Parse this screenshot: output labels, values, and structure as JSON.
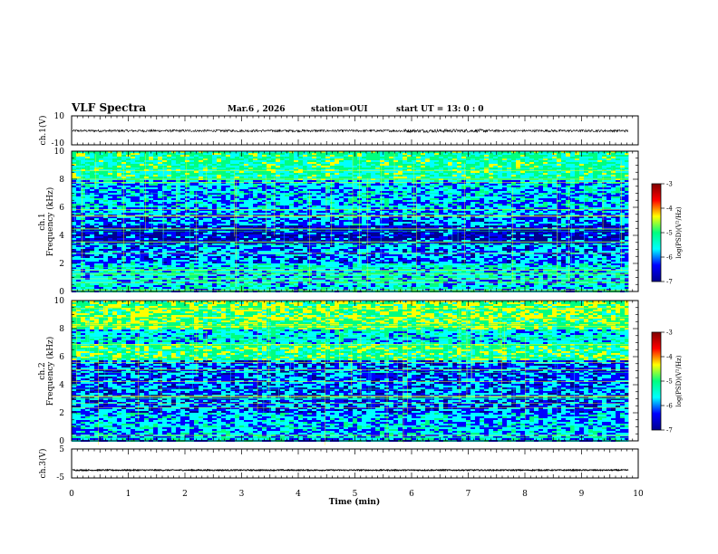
{
  "header": {
    "title": "VLF Spectra",
    "date": "Mar.6  , 2026",
    "station": "station=OUI",
    "start_ut": "start  UT  =   13: 0  : 0"
  },
  "colors": {
    "colormap": [
      "#00008f",
      "#0000ff",
      "#00ffff",
      "#00ff7f",
      "#ffff00",
      "#ff0000",
      "#7f0000"
    ]
  },
  "chart_data": [
    {
      "id": "ch1_waveform",
      "type": "line",
      "ylabel": "ch.1(V)",
      "ylim": [
        -10,
        10
      ],
      "yticks": [
        "10",
        "-10"
      ],
      "description_series": [
        {
          "name": "ch.1",
          "approx_level": -0.3,
          "approx_amplitude": 0.8
        }
      ]
    },
    {
      "id": "ch1_spectrogram",
      "type": "heatmap",
      "ylabel_line1": "ch.1",
      "ylabel_line2": "Frequency (kHz)",
      "ylim": [
        0,
        10
      ],
      "yticks": [
        "0",
        "2",
        "4",
        "6",
        "8",
        "10"
      ],
      "colorbar": {
        "label": "log(PSD)(V²/Hz)",
        "range": [
          -7,
          -3
        ],
        "ticks": [
          "-7",
          "-6",
          "-5",
          "-4",
          "-3"
        ]
      }
    },
    {
      "id": "ch2_spectrogram",
      "type": "heatmap",
      "ylabel_line1": "ch.2",
      "ylabel_line2": "Frequency (kHz)",
      "ylim": [
        0,
        10
      ],
      "yticks": [
        "0",
        "2",
        "4",
        "6",
        "8",
        "10"
      ],
      "colorbar": {
        "label": "log(PSD)(V²/Hz)",
        "range": [
          -7,
          -3
        ],
        "ticks": [
          "-7",
          "-6",
          "-5",
          "-4",
          "-3"
        ]
      }
    },
    {
      "id": "ch3_waveform",
      "type": "line",
      "ylabel": "ch.3(V)",
      "ylim": [
        -5,
        5
      ],
      "yticks": [
        "5",
        "-5"
      ],
      "description_series": [
        {
          "name": "ch.3",
          "approx_level": -2.3,
          "approx_amplitude": 0.2
        }
      ]
    }
  ],
  "xaxis": {
    "label": "Time  (min)",
    "range": [
      0,
      10
    ],
    "ticks": [
      "0",
      "1",
      "2",
      "3",
      "4",
      "5",
      "6",
      "7",
      "8",
      "9",
      "10"
    ],
    "data_end": 9.83
  }
}
